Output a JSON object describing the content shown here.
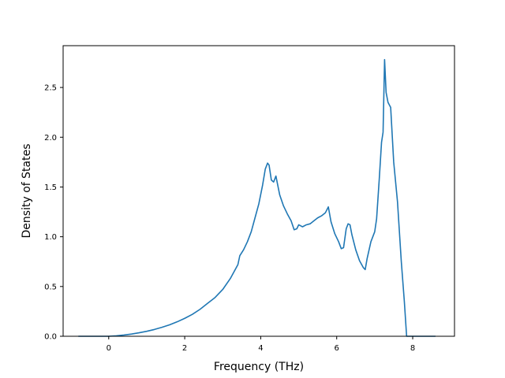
{
  "chart_data": {
    "type": "line",
    "title": "",
    "xlabel": "Frequency (THz)",
    "ylabel": "Density of States",
    "xlim": [
      -1.2,
      9.1
    ],
    "ylim": [
      0.0,
      2.92
    ],
    "xticks": [
      "0",
      "2",
      "4",
      "6",
      "8"
    ],
    "xtick_values": [
      0,
      2,
      4,
      6,
      8
    ],
    "yticks": [
      "0.0",
      "0.5",
      "1.0",
      "1.5",
      "2.0",
      "2.5"
    ],
    "ytick_values": [
      0.0,
      0.5,
      1.0,
      1.5,
      2.0,
      2.5
    ],
    "grid": false,
    "series": [
      {
        "color": "#1f77b4",
        "x": [
          -0.8,
          0.0,
          0.2,
          0.4,
          0.6,
          0.8,
          1.0,
          1.2,
          1.4,
          1.6,
          1.8,
          2.0,
          2.2,
          2.4,
          2.6,
          2.8,
          3.0,
          3.2,
          3.3,
          3.4,
          3.45,
          3.55,
          3.65,
          3.75,
          3.85,
          3.95,
          4.05,
          4.12,
          4.18,
          4.22,
          4.28,
          4.34,
          4.4,
          4.5,
          4.6,
          4.7,
          4.8,
          4.88,
          4.95,
          5.0,
          5.1,
          5.2,
          5.3,
          5.4,
          5.5,
          5.6,
          5.7,
          5.78,
          5.85,
          5.95,
          6.05,
          6.12,
          6.18,
          6.25,
          6.3,
          6.35,
          6.4,
          6.5,
          6.6,
          6.7,
          6.75,
          6.8,
          6.9,
          7.0,
          7.05,
          7.12,
          7.18,
          7.22,
          7.26,
          7.3,
          7.35,
          7.42,
          7.5,
          7.6,
          7.7,
          7.78,
          7.84,
          8.0,
          8.6
        ],
        "y": [
          0.0,
          0.0,
          0.005,
          0.012,
          0.022,
          0.035,
          0.05,
          0.068,
          0.09,
          0.115,
          0.145,
          0.18,
          0.22,
          0.27,
          0.33,
          0.39,
          0.47,
          0.58,
          0.65,
          0.72,
          0.81,
          0.87,
          0.95,
          1.05,
          1.19,
          1.33,
          1.52,
          1.68,
          1.74,
          1.72,
          1.57,
          1.55,
          1.61,
          1.42,
          1.31,
          1.23,
          1.16,
          1.07,
          1.08,
          1.12,
          1.1,
          1.12,
          1.13,
          1.16,
          1.19,
          1.21,
          1.24,
          1.3,
          1.15,
          1.03,
          0.95,
          0.88,
          0.89,
          1.08,
          1.13,
          1.12,
          1.02,
          0.87,
          0.76,
          0.69,
          0.67,
          0.78,
          0.95,
          1.05,
          1.18,
          1.58,
          1.95,
          2.05,
          2.78,
          2.45,
          2.35,
          2.3,
          1.75,
          1.35,
          0.75,
          0.35,
          0.0,
          0.0,
          0.0
        ]
      }
    ]
  }
}
